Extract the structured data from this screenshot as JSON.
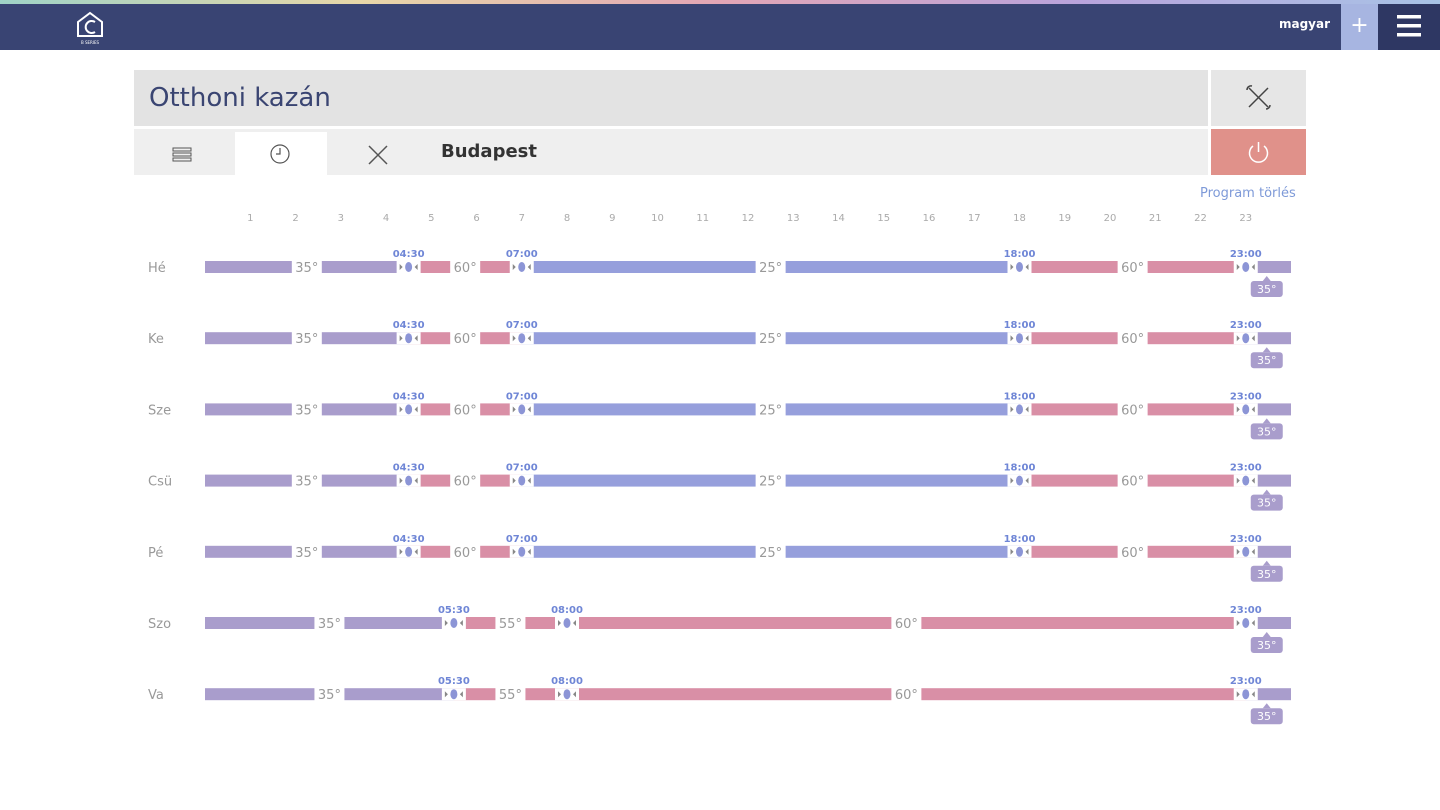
{
  "header": {
    "logo_text": "B SERIES",
    "language": "magyar"
  },
  "device": {
    "title": "Otthoni kazán",
    "location": "Budapest"
  },
  "schedule": {
    "clear_label": "Program törlés",
    "hours": [
      1,
      2,
      3,
      4,
      5,
      6,
      7,
      8,
      9,
      10,
      11,
      12,
      13,
      14,
      15,
      16,
      17,
      18,
      19,
      20,
      21,
      22,
      23
    ],
    "days": [
      {
        "label": "Hé",
        "first": "35°",
        "switches": [
          {
            "time": "04:30",
            "temp": "60°"
          },
          {
            "time": "07:00",
            "temp": "25°"
          },
          {
            "time": "18:00",
            "temp": "60°"
          },
          {
            "time": "23:00",
            "temp": "35°"
          }
        ]
      },
      {
        "label": "Ke",
        "first": "35°",
        "switches": [
          {
            "time": "04:30",
            "temp": "60°"
          },
          {
            "time": "07:00",
            "temp": "25°"
          },
          {
            "time": "18:00",
            "temp": "60°"
          },
          {
            "time": "23:00",
            "temp": "35°"
          }
        ]
      },
      {
        "label": "Sze",
        "first": "35°",
        "switches": [
          {
            "time": "04:30",
            "temp": "60°"
          },
          {
            "time": "07:00",
            "temp": "25°"
          },
          {
            "time": "18:00",
            "temp": "60°"
          },
          {
            "time": "23:00",
            "temp": "35°"
          }
        ]
      },
      {
        "label": "Csü",
        "first": "35°",
        "switches": [
          {
            "time": "04:30",
            "temp": "60°"
          },
          {
            "time": "07:00",
            "temp": "25°"
          },
          {
            "time": "18:00",
            "temp": "60°"
          },
          {
            "time": "23:00",
            "temp": "35°"
          }
        ]
      },
      {
        "label": "Pé",
        "first": "35°",
        "switches": [
          {
            "time": "04:30",
            "temp": "60°"
          },
          {
            "time": "07:00",
            "temp": "25°"
          },
          {
            "time": "18:00",
            "temp": "60°"
          },
          {
            "time": "23:00",
            "temp": "35°"
          }
        ]
      },
      {
        "label": "Szo",
        "first": "35°",
        "switches": [
          {
            "time": "05:30",
            "temp": "55°"
          },
          {
            "time": "08:00",
            "temp": "60°"
          },
          {
            "time": "23:00",
            "temp": "35°"
          }
        ]
      },
      {
        "label": "Va",
        "first": "35°",
        "switches": [
          {
            "time": "05:30",
            "temp": "55°"
          },
          {
            "time": "08:00",
            "temp": "60°"
          },
          {
            "time": "23:00",
            "temp": "35°"
          }
        ]
      }
    ]
  }
}
